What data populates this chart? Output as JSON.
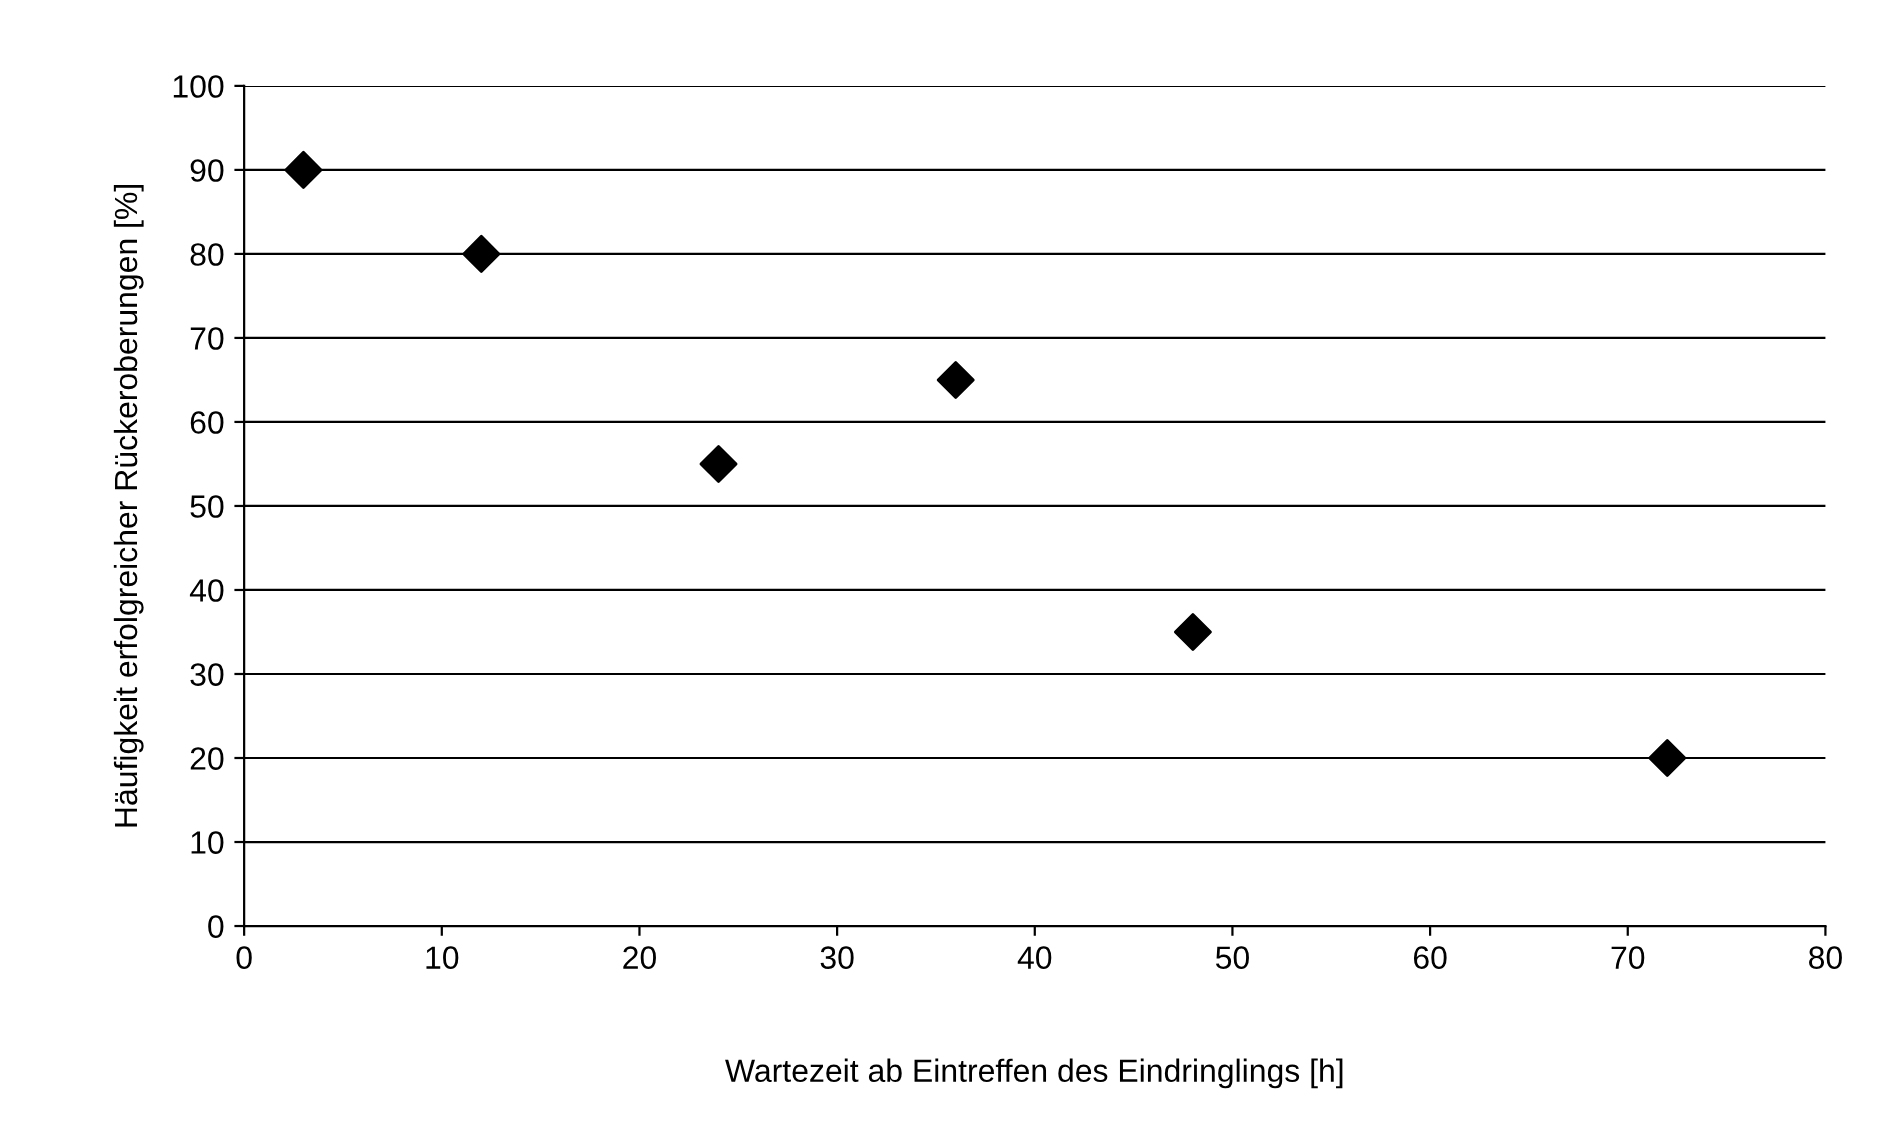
{
  "chart_data": {
    "type": "scatter",
    "xlabel": "Wartezeit ab Eintreffen des Eindringlings [h]",
    "ylabel": "Häufigkeit erfolgreicher Rückeroberungen [%]",
    "x": [
      3,
      12,
      24,
      36,
      48,
      72
    ],
    "series": [
      {
        "color": "#000000",
        "values": [
          90,
          80,
          55,
          65,
          35,
          20
        ]
      }
    ],
    "xlim": [
      0,
      80
    ],
    "xticks": [
      0,
      10,
      20,
      30,
      40,
      50,
      60,
      70,
      80
    ],
    "ylim": [
      0,
      100
    ],
    "yticks": [
      0,
      10,
      20,
      30,
      40,
      50,
      60,
      70,
      80,
      90,
      100
    ],
    "grid": "y",
    "marker": "diamond",
    "legend": false
  }
}
